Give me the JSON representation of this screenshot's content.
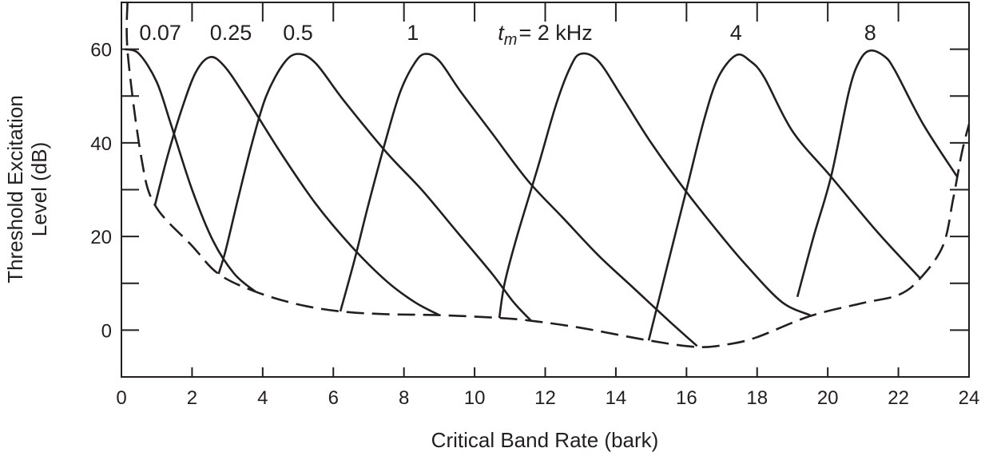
{
  "chart_data": {
    "type": "line",
    "title": "",
    "xlabel": "Critical Band Rate (bark)",
    "ylabel_lines": [
      "Threshold Excitation",
      "Level (dB)"
    ],
    "xlim": [
      0,
      24
    ],
    "ylim": [
      -10,
      70
    ],
    "xticks": [
      0,
      2,
      4,
      6,
      8,
      10,
      12,
      14,
      16,
      18,
      20,
      22,
      24
    ],
    "yticks": [
      0,
      20,
      40,
      60
    ],
    "grid": false,
    "color": "#231f20",
    "series": [
      {
        "name": "0.07",
        "style": "solid",
        "points": [
          [
            0.1,
            60
          ],
          [
            0.5,
            59
          ],
          [
            1.0,
            53
          ],
          [
            1.4,
            44
          ],
          [
            2.0,
            30
          ],
          [
            2.6,
            19
          ],
          [
            3.2,
            12
          ],
          [
            3.8,
            8.2
          ]
        ]
      },
      {
        "name": "0.25",
        "style": "solid",
        "points": [
          [
            0.95,
            26.7
          ],
          [
            1.3,
            37
          ],
          [
            1.7,
            47
          ],
          [
            2.1,
            55
          ],
          [
            2.5,
            58.3
          ],
          [
            2.9,
            56.5
          ],
          [
            3.5,
            50
          ],
          [
            4.5,
            38
          ],
          [
            5.5,
            27
          ],
          [
            6.5,
            18
          ],
          [
            7.5,
            10.5
          ],
          [
            8.3,
            6
          ],
          [
            9.0,
            3.2
          ]
        ]
      },
      {
        "name": "0.5",
        "style": "solid",
        "points": [
          [
            2.75,
            12
          ],
          [
            2.95,
            17
          ],
          [
            3.3,
            28
          ],
          [
            3.7,
            40
          ],
          [
            4.1,
            50
          ],
          [
            4.6,
            57
          ],
          [
            5.0,
            59
          ],
          [
            5.5,
            57
          ],
          [
            6.3,
            49
          ],
          [
            7.5,
            38
          ],
          [
            8.5,
            30
          ],
          [
            9.5,
            21
          ],
          [
            10.5,
            12
          ],
          [
            11.1,
            6
          ],
          [
            11.6,
            2
          ]
        ]
      },
      {
        "name": "1",
        "style": "solid",
        "points": [
          [
            6.2,
            4
          ],
          [
            6.6,
            15
          ],
          [
            7.0,
            27
          ],
          [
            7.5,
            41
          ],
          [
            7.9,
            51
          ],
          [
            8.3,
            57
          ],
          [
            8.6,
            59
          ],
          [
            9.0,
            57.5
          ],
          [
            9.6,
            51
          ],
          [
            10.5,
            42
          ],
          [
            11.5,
            32
          ],
          [
            12.5,
            24
          ],
          [
            13.5,
            16
          ],
          [
            14.5,
            9
          ],
          [
            15.5,
            2
          ],
          [
            16.3,
            -3.4
          ]
        ]
      },
      {
        "name": "2",
        "style": "solid",
        "points": [
          [
            10.7,
            2.6
          ],
          [
            10.85,
            10
          ],
          [
            11.2,
            20
          ],
          [
            11.8,
            35
          ],
          [
            12.3,
            48
          ],
          [
            12.7,
            56
          ],
          [
            13.0,
            59
          ],
          [
            13.5,
            57.5
          ],
          [
            14.2,
            49.5
          ],
          [
            15.0,
            40
          ],
          [
            16.0,
            29.5
          ],
          [
            17.0,
            20
          ],
          [
            17.7,
            13.8
          ],
          [
            18.7,
            6
          ],
          [
            19.5,
            3.2
          ]
        ]
      },
      {
        "name": "4",
        "style": "solid",
        "points": [
          [
            14.93,
            -2.2
          ],
          [
            15.5,
            15
          ],
          [
            16.0,
            30
          ],
          [
            16.5,
            45
          ],
          [
            16.9,
            54
          ],
          [
            17.4,
            58.7
          ],
          [
            17.8,
            57.5
          ],
          [
            18.2,
            54
          ],
          [
            19.0,
            42.5
          ],
          [
            20.1,
            32.7
          ],
          [
            21.4,
            21
          ],
          [
            22.6,
            11.2
          ]
        ]
      },
      {
        "name": "8",
        "style": "solid",
        "points": [
          [
            19.14,
            7.1
          ],
          [
            19.6,
            20
          ],
          [
            20.1,
            33
          ],
          [
            20.6,
            51
          ],
          [
            20.9,
            57.5
          ],
          [
            21.2,
            59.7
          ],
          [
            21.6,
            58.5
          ],
          [
            21.9,
            55.5
          ],
          [
            22.7,
            44
          ],
          [
            23.67,
            32.7
          ]
        ]
      },
      {
        "style": "dashed",
        "points": [
          [
            0.17,
            70
          ],
          [
            0.18,
            59
          ],
          [
            0.56,
            37
          ],
          [
            0.95,
            26.7
          ],
          [
            2.0,
            18
          ],
          [
            2.75,
            12
          ],
          [
            3.8,
            8.2
          ],
          [
            5.0,
            5.5
          ],
          [
            6.2,
            4
          ],
          [
            7.5,
            3.4
          ],
          [
            9.0,
            3.2
          ],
          [
            10.7,
            2.6
          ],
          [
            11.6,
            2
          ],
          [
            13.0,
            0.5
          ],
          [
            14.93,
            -2.2
          ],
          [
            16.3,
            -3.6
          ],
          [
            17.2,
            -3.0
          ],
          [
            18.0,
            -1.5
          ],
          [
            19.5,
            3.0
          ],
          [
            21.0,
            5.8
          ],
          [
            22.0,
            7.5
          ],
          [
            22.6,
            10.9
          ],
          [
            23.26,
            18
          ],
          [
            23.55,
            28
          ],
          [
            23.8,
            38
          ],
          [
            24.0,
            44
          ]
        ]
      }
    ],
    "annotations": [
      {
        "text": "0.07",
        "x": 1.1,
        "y": 62
      },
      {
        "text": "0.25",
        "x": 3.1,
        "y": 62
      },
      {
        "text": "0.5",
        "x": 5.0,
        "y": 62
      },
      {
        "text": "1",
        "x": 8.25,
        "y": 62
      },
      {
        "text_italic": "t",
        "subscript": "m",
        "text": "= 2 kHz",
        "x": 12.0,
        "y": 62
      },
      {
        "text": "4",
        "x": 17.4,
        "y": 62
      },
      {
        "text": "8",
        "x": 21.2,
        "y": 62
      }
    ]
  }
}
